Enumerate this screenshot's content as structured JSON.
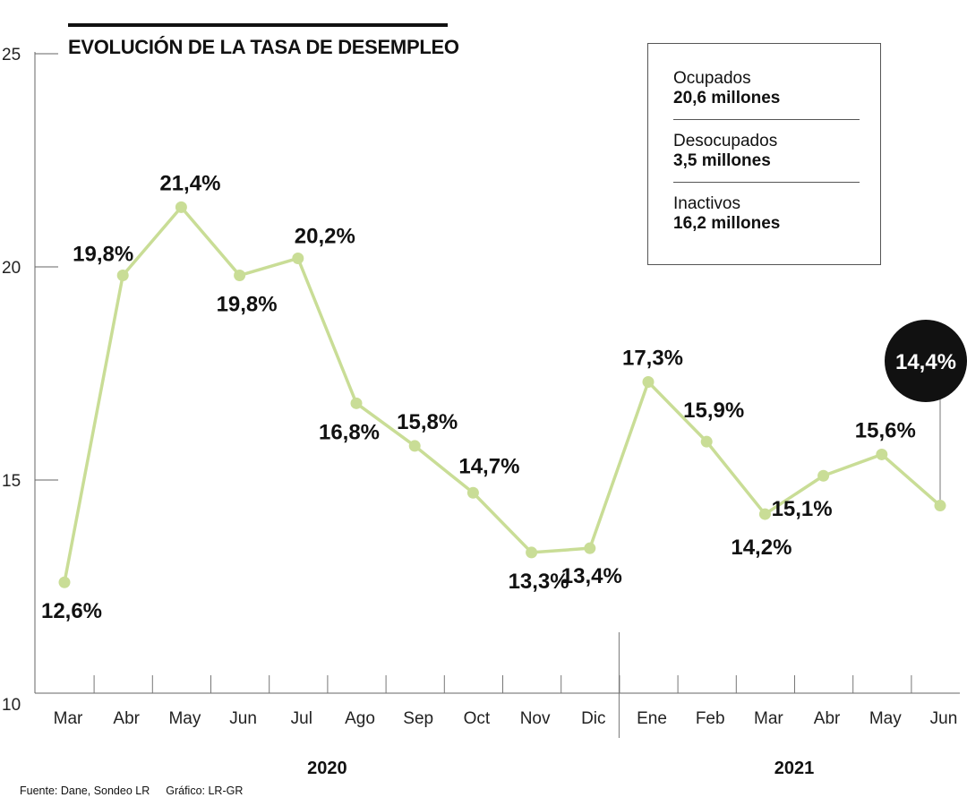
{
  "chart_data": {
    "type": "line",
    "title": "EVOLUCIÓN DE LA TASA DE DESEMPLEO",
    "categories": [
      "Mar",
      "Abr",
      "May",
      "Jun",
      "Jul",
      "Ago",
      "Sep",
      "Oct",
      "Nov",
      "Dic",
      "Ene",
      "Feb",
      "Mar",
      "Abr",
      "May",
      "Jun"
    ],
    "values": [
      12.6,
      19.8,
      21.4,
      19.8,
      20.2,
      16.8,
      15.8,
      14.7,
      13.3,
      13.4,
      17.3,
      15.9,
      14.2,
      15.1,
      15.6,
      14.4
    ],
    "value_labels": [
      "12,6%",
      "19,8%",
      "21,4%",
      "19,8%",
      "20,2%",
      "16,8%",
      "15,8%",
      "14,7%",
      "13,3%",
      "13,4%",
      "17,3%",
      "15,9%",
      "14,2%",
      "15,1%",
      "15,6%",
      "14,4%"
    ],
    "year_groups": [
      {
        "label": "2020",
        "start": 0,
        "end": 9
      },
      {
        "label": "2021",
        "start": 10,
        "end": 15
      }
    ],
    "y_ticks": [
      "10",
      "15",
      "20",
      "25"
    ],
    "ylim": [
      10,
      25
    ],
    "highlight_index": 15,
    "line_color": "#c9dd96",
    "grid": false
  },
  "stats": [
    {
      "label": "Ocupados",
      "value": "20,6 millones"
    },
    {
      "label": "Desocupados",
      "value": "3,5 millones"
    },
    {
      "label": "Inactivos",
      "value": "16,2 millones"
    }
  ],
  "source": {
    "fuente": "Fuente: Dane, Sondeo LR",
    "grafico": "Gráfico: LR-GR"
  }
}
